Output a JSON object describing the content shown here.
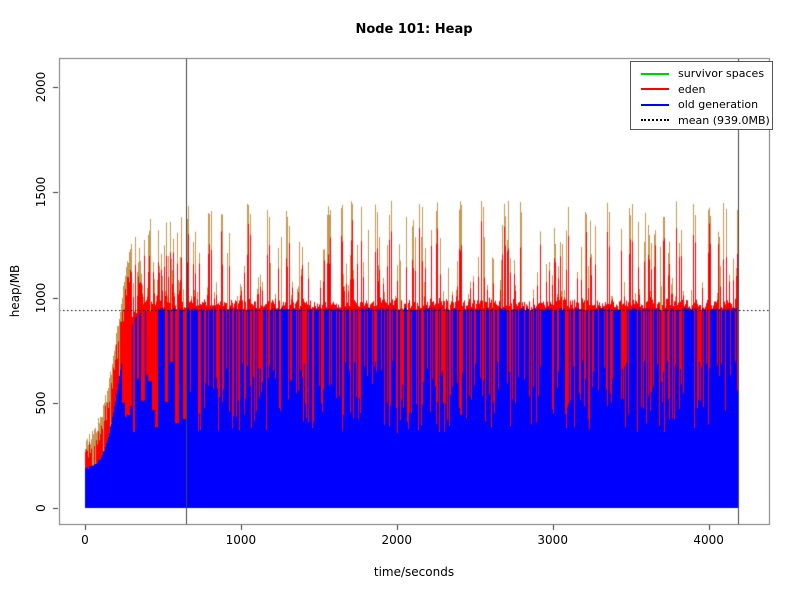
{
  "chart_data": {
    "type": "line",
    "title": "Node 101: Heap",
    "xlabel": "time/seconds",
    "ylabel": "heap/MB",
    "x_ticks": [
      0,
      1000,
      2000,
      3000,
      4000
    ],
    "y_ticks": [
      0,
      500,
      1000,
      1500,
      2000
    ],
    "x_range_s": [
      -170,
      4385
    ],
    "y_range_mb": [
      -80,
      2135
    ],
    "grid": false,
    "legend_position": "top-right",
    "legend": [
      {
        "label": "survivor spaces",
        "color": "#00CC00",
        "style": "solid"
      },
      {
        "label": "eden",
        "color": "#FF0000",
        "style": "solid"
      },
      {
        "label": "old generation",
        "color": "#0000FF",
        "style": "solid"
      },
      {
        "label": "mean (939.0MB)",
        "color": "#000000",
        "style": "dotted"
      }
    ],
    "mean_mb": 939.0,
    "vlines_s": [
      650,
      4190
    ],
    "data_start_s": 0,
    "data_end_s": 4190,
    "series_model": {
      "old_generation": {
        "start_mb": 185,
        "steady_top_mb": 945,
        "ramp_midpoint_s": 205,
        "ramp_scale_s": 42,
        "dip_floor_mb": 355,
        "dip_ceiling_mb": 700,
        "dip_probability": 0.4
      },
      "eden": {
        "warmup_band_base_mb": 100,
        "warmup_band_growth_mb_per_s": 0.9,
        "steady_fringe_mb": 45,
        "spike_min_mb": 960,
        "spike_max_mb": 1460,
        "spike_probability": 0.45
      },
      "survivor_spaces": {
        "overlap_tip_color": "#C39A54",
        "tip_fraction_min": 0.15,
        "tip_fraction_max": 0.55
      }
    },
    "tall_spike_anchors_s": [
      650,
      800,
      870,
      1050,
      1180,
      1300,
      1420,
      1560,
      1650,
      1700,
      1760,
      1870,
      1950,
      2050,
      2150,
      2250,
      2400,
      2550,
      2700,
      2800,
      2950,
      3100,
      3200,
      3350,
      3500,
      3600,
      3700,
      3800,
      3900,
      4000,
      4100,
      4190
    ],
    "axis_color": "#777777",
    "tick_color": "#333333",
    "vline_color": "#444444",
    "seed": 101
  }
}
